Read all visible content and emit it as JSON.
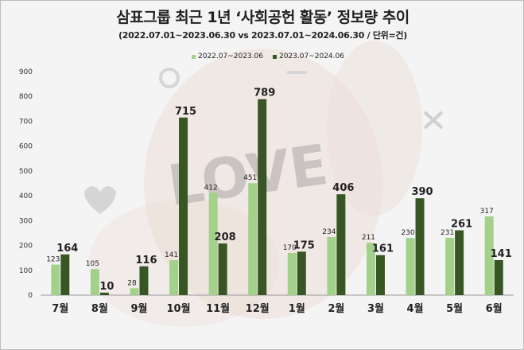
{
  "chart_data": {
    "type": "bar",
    "title": "삼표그룹 최근 1년 ‘사회공헌 활동’ 정보량 추이",
    "subtitle": "(2022.07.01~2023.06.30  vs 2023.07.01~2024.06.30  / 단위=건)",
    "categories": [
      "7월",
      "8월",
      "9월",
      "10월",
      "11월",
      "12월",
      "1월",
      "2월",
      "3월",
      "4월",
      "5월",
      "6월"
    ],
    "series": [
      {
        "name": "2022.07~2023.06",
        "color": "#a3d18c",
        "values": [
          123,
          105,
          28,
          141,
          412,
          451,
          170,
          234,
          211,
          230,
          231,
          317
        ]
      },
      {
        "name": "2023.07~2024.06",
        "color": "#375623",
        "values": [
          164,
          10,
          116,
          715,
          208,
          789,
          175,
          406,
          161,
          390,
          261,
          141
        ]
      }
    ],
    "y_ticks": [
      "0",
      "100",
      "200",
      "300",
      "400",
      "500",
      "600",
      "700",
      "800",
      "900"
    ],
    "ylim": [
      0,
      900
    ],
    "grid": false,
    "legend_position": "top"
  }
}
